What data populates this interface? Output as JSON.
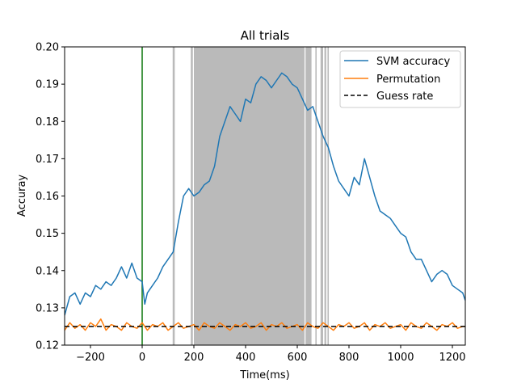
{
  "chart_data": {
    "type": "line",
    "title": "All trials",
    "xlabel": "Time(ms)",
    "ylabel": "Accuray",
    "xlim": [
      -300,
      1250
    ],
    "ylim": [
      0.12,
      0.2
    ],
    "x_ticks": [
      -200,
      0,
      200,
      400,
      600,
      800,
      1000,
      1200
    ],
    "x_tick_labels": [
      "−200",
      "0",
      "200",
      "400",
      "600",
      "800",
      "1000",
      "1200"
    ],
    "y_ticks": [
      0.12,
      0.13,
      0.14,
      0.15,
      0.16,
      0.17,
      0.18,
      0.19,
      0.2
    ],
    "y_tick_labels": [
      "0.12",
      "0.13",
      "0.14",
      "0.15",
      "0.16",
      "0.17",
      "0.18",
      "0.19",
      "0.20"
    ],
    "grid": false,
    "legend_position": "top-right",
    "stimulus_onset_line": {
      "x": 0,
      "color": "#1a7f1a"
    },
    "significant_windows_ms": [
      [
        118,
        126
      ],
      [
        188,
        196
      ],
      [
        200,
        628
      ],
      [
        632,
        655
      ],
      [
        670,
        675
      ],
      [
        690,
        700
      ],
      [
        705,
        712
      ],
      [
        717,
        722
      ]
    ],
    "series": [
      {
        "name": "SVM accuracy",
        "color": "#1f77b4",
        "points": [
          [
            -300,
            0.128
          ],
          [
            -280,
            0.133
          ],
          [
            -260,
            0.134
          ],
          [
            -240,
            0.131
          ],
          [
            -220,
            0.134
          ],
          [
            -200,
            0.133
          ],
          [
            -180,
            0.136
          ],
          [
            -160,
            0.135
          ],
          [
            -140,
            0.137
          ],
          [
            -120,
            0.136
          ],
          [
            -100,
            0.138
          ],
          [
            -80,
            0.141
          ],
          [
            -60,
            0.138
          ],
          [
            -40,
            0.142
          ],
          [
            -20,
            0.138
          ],
          [
            0,
            0.137
          ],
          [
            10,
            0.131
          ],
          [
            20,
            0.134
          ],
          [
            40,
            0.136
          ],
          [
            60,
            0.138
          ],
          [
            80,
            0.141
          ],
          [
            100,
            0.143
          ],
          [
            120,
            0.145
          ],
          [
            140,
            0.153
          ],
          [
            160,
            0.16
          ],
          [
            180,
            0.162
          ],
          [
            200,
            0.16
          ],
          [
            220,
            0.161
          ],
          [
            240,
            0.163
          ],
          [
            260,
            0.164
          ],
          [
            280,
            0.168
          ],
          [
            300,
            0.176
          ],
          [
            320,
            0.18
          ],
          [
            340,
            0.184
          ],
          [
            360,
            0.182
          ],
          [
            380,
            0.18
          ],
          [
            400,
            0.186
          ],
          [
            420,
            0.185
          ],
          [
            440,
            0.19
          ],
          [
            460,
            0.192
          ],
          [
            480,
            0.191
          ],
          [
            500,
            0.189
          ],
          [
            520,
            0.191
          ],
          [
            540,
            0.193
          ],
          [
            560,
            0.192
          ],
          [
            580,
            0.19
          ],
          [
            600,
            0.189
          ],
          [
            620,
            0.186
          ],
          [
            640,
            0.183
          ],
          [
            660,
            0.184
          ],
          [
            680,
            0.18
          ],
          [
            700,
            0.176
          ],
          [
            720,
            0.173
          ],
          [
            740,
            0.168
          ],
          [
            760,
            0.164
          ],
          [
            780,
            0.162
          ],
          [
            800,
            0.16
          ],
          [
            820,
            0.165
          ],
          [
            840,
            0.163
          ],
          [
            860,
            0.17
          ],
          [
            880,
            0.165
          ],
          [
            900,
            0.16
          ],
          [
            920,
            0.156
          ],
          [
            940,
            0.155
          ],
          [
            960,
            0.154
          ],
          [
            980,
            0.152
          ],
          [
            1000,
            0.15
          ],
          [
            1020,
            0.149
          ],
          [
            1040,
            0.145
          ],
          [
            1060,
            0.143
          ],
          [
            1080,
            0.143
          ],
          [
            1100,
            0.14
          ],
          [
            1120,
            0.137
          ],
          [
            1140,
            0.139
          ],
          [
            1160,
            0.14
          ],
          [
            1180,
            0.139
          ],
          [
            1200,
            0.136
          ],
          [
            1220,
            0.135
          ],
          [
            1240,
            0.134
          ],
          [
            1250,
            0.132
          ]
        ]
      },
      {
        "name": "Permutation",
        "color": "#ff7f0e",
        "points": [
          [
            -300,
            0.124
          ],
          [
            -280,
            0.126
          ],
          [
            -260,
            0.1245
          ],
          [
            -240,
            0.1255
          ],
          [
            -220,
            0.124
          ],
          [
            -200,
            0.126
          ],
          [
            -180,
            0.125
          ],
          [
            -160,
            0.127
          ],
          [
            -140,
            0.124
          ],
          [
            -120,
            0.1255
          ],
          [
            -100,
            0.125
          ],
          [
            -80,
            0.124
          ],
          [
            -60,
            0.126
          ],
          [
            -40,
            0.125
          ],
          [
            -20,
            0.1245
          ],
          [
            0,
            0.126
          ],
          [
            20,
            0.124
          ],
          [
            40,
            0.1255
          ],
          [
            60,
            0.125
          ],
          [
            80,
            0.126
          ],
          [
            100,
            0.124
          ],
          [
            120,
            0.125
          ],
          [
            140,
            0.126
          ],
          [
            160,
            0.1245
          ],
          [
            180,
            0.125
          ],
          [
            200,
            0.1255
          ],
          [
            220,
            0.124
          ],
          [
            240,
            0.126
          ],
          [
            260,
            0.125
          ],
          [
            280,
            0.1245
          ],
          [
            300,
            0.126
          ],
          [
            320,
            0.125
          ],
          [
            340,
            0.124
          ],
          [
            360,
            0.1255
          ],
          [
            380,
            0.125
          ],
          [
            400,
            0.126
          ],
          [
            420,
            0.1245
          ],
          [
            440,
            0.125
          ],
          [
            460,
            0.126
          ],
          [
            480,
            0.124
          ],
          [
            500,
            0.1255
          ],
          [
            520,
            0.125
          ],
          [
            540,
            0.126
          ],
          [
            560,
            0.1245
          ],
          [
            580,
            0.125
          ],
          [
            600,
            0.1255
          ],
          [
            620,
            0.124
          ],
          [
            640,
            0.126
          ],
          [
            660,
            0.125
          ],
          [
            680,
            0.1245
          ],
          [
            700,
            0.126
          ],
          [
            720,
            0.125
          ],
          [
            740,
            0.124
          ],
          [
            760,
            0.1255
          ],
          [
            780,
            0.125
          ],
          [
            800,
            0.126
          ],
          [
            820,
            0.1245
          ],
          [
            840,
            0.125
          ],
          [
            860,
            0.126
          ],
          [
            880,
            0.124
          ],
          [
            900,
            0.1255
          ],
          [
            920,
            0.125
          ],
          [
            940,
            0.126
          ],
          [
            960,
            0.1245
          ],
          [
            980,
            0.125
          ],
          [
            1000,
            0.1255
          ],
          [
            1020,
            0.124
          ],
          [
            1040,
            0.126
          ],
          [
            1060,
            0.125
          ],
          [
            1080,
            0.1245
          ],
          [
            1100,
            0.126
          ],
          [
            1120,
            0.125
          ],
          [
            1140,
            0.124
          ],
          [
            1160,
            0.1255
          ],
          [
            1180,
            0.125
          ],
          [
            1200,
            0.126
          ],
          [
            1220,
            0.1245
          ],
          [
            1240,
            0.125
          ],
          [
            1250,
            0.125
          ]
        ]
      },
      {
        "name": "Guess rate",
        "color": "#000000",
        "dash": "dashed",
        "points": [
          [
            -300,
            0.125
          ],
          [
            1250,
            0.125
          ]
        ]
      }
    ]
  }
}
